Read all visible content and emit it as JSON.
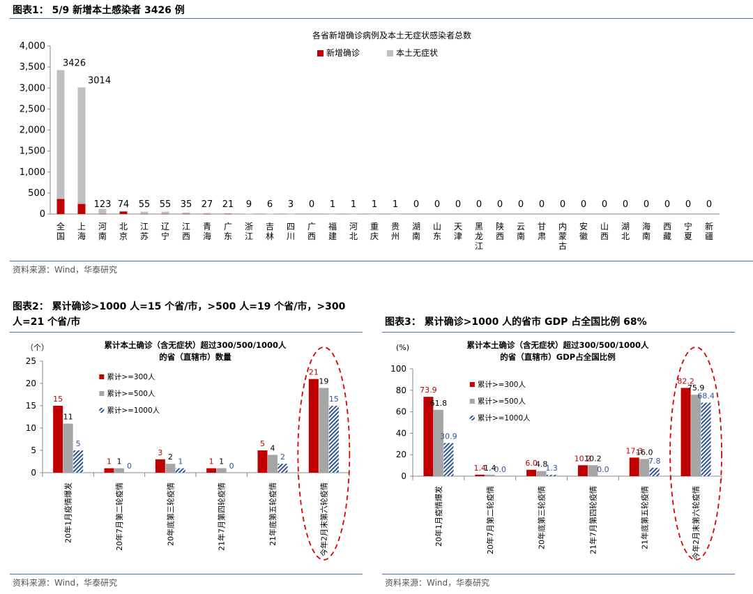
{
  "figures": {
    "fig1": {
      "title": "图表1： 5/9 新增本土感染者 3426 例",
      "source": "资料来源：Wind，华泰研究"
    },
    "fig2": {
      "title_line1": "图表2： 累计确诊>1000 人=15 个省/市，>500 人=19 个省/市，>300",
      "title_line2": "人=21 个省/市",
      "source": "资料来源：Wind，华泰研究"
    },
    "fig3": {
      "title": "图表3： 累计确诊>1000 人的省市 GDP 占全国比例 68%",
      "source": "资料来源：Wind，华泰研究"
    }
  },
  "chart_data": [
    {
      "type": "bar",
      "stacked": true,
      "title": "各省新增确诊病例及本土无症状感染者总数",
      "categories": [
        "全国",
        "上海",
        "河南",
        "北京",
        "江苏",
        "辽宁",
        "江西",
        "青海",
        "广东",
        "浙江",
        "吉林",
        "四川",
        "广西",
        "福建",
        "河北",
        "重庆",
        "贵州",
        "湖南",
        "山东",
        "天津",
        "黑龙江",
        "陕西",
        "云南",
        "甘肃",
        "内蒙古",
        "安徽",
        "山西",
        "湖北",
        "海南",
        "西藏",
        "宁夏",
        "新疆"
      ],
      "series": [
        {
          "name": "新增确诊",
          "color": "#c00000",
          "values": [
            360,
            240,
            5,
            60,
            5,
            5,
            5,
            3,
            5,
            0,
            0,
            0,
            0,
            0,
            0,
            0,
            0,
            0,
            0,
            0,
            0,
            0,
            0,
            0,
            0,
            0,
            0,
            0,
            0,
            0,
            0,
            0
          ]
        },
        {
          "name": "本土无症状",
          "color": "#bfbfbf",
          "values": [
            3066,
            2774,
            118,
            14,
            50,
            50,
            30,
            24,
            16,
            9,
            6,
            3,
            0,
            1,
            1,
            1,
            1,
            0,
            0,
            0,
            0,
            0,
            0,
            0,
            0,
            0,
            0,
            0,
            0,
            0,
            0,
            0
          ]
        }
      ],
      "totals": [
        3426,
        3014,
        123,
        74,
        55,
        55,
        35,
        27,
        21,
        9,
        6,
        3,
        0,
        1,
        1,
        1,
        1,
        0,
        0,
        0,
        0,
        0,
        0,
        0,
        0,
        0,
        0,
        0,
        0,
        0,
        0,
        0
      ],
      "total_labels": [
        "3426",
        "3014",
        "123",
        "74",
        "55",
        "55",
        "35",
        "27",
        "21",
        "9",
        "6",
        "3",
        "0",
        "1",
        "1",
        "1",
        "1",
        "0",
        "0",
        "0",
        "0",
        "0",
        "0",
        "0",
        "0",
        "0",
        "0",
        "0",
        "0",
        "0",
        "0",
        "0"
      ],
      "ylim": [
        0,
        4000
      ],
      "yticks": [
        0,
        500,
        1000,
        1500,
        2000,
        2500,
        3000,
        3500,
        4000
      ],
      "ytick_labels": [
        "0",
        "500",
        "1,000",
        "1,500",
        "2,000",
        "2,500",
        "3,000",
        "3,500",
        "4,000"
      ],
      "legend_position": "top-center"
    },
    {
      "type": "bar",
      "title_line1": "累计本土确诊（含无症状）超过300/500/1000人",
      "title_line2": "的省（直辖市）数量",
      "yunit": "（个）",
      "categories": [
        "20年1月疫情爆发",
        "20年7月第二轮疫情",
        "20年底第三轮疫情",
        "21年7月第四轮疫情",
        "21年底第五轮疫情",
        "今年2月末第六轮疫情"
      ],
      "series": [
        {
          "name": "累计>=300人",
          "color": "#c00000",
          "label_color": "#c00000",
          "values": [
            15,
            1,
            3,
            1,
            5,
            21
          ],
          "labels": [
            "15",
            "1",
            "3",
            "1",
            "5",
            "21"
          ]
        },
        {
          "name": "累计>=500人",
          "color": "#a6a6a6",
          "label_color": "#000000",
          "values": [
            11,
            1,
            2,
            1,
            4,
            19
          ],
          "labels": [
            "11",
            "1",
            "2",
            "1",
            "4",
            "19"
          ]
        },
        {
          "name": "累计>=1000人",
          "color": "#2e5597",
          "label_color": "#2e5597",
          "hatched": true,
          "values": [
            5,
            0,
            1,
            0,
            2,
            15
          ],
          "labels": [
            "5",
            "0",
            "1",
            "0",
            "2",
            "15"
          ]
        }
      ],
      "ylim": [
        0,
        25
      ],
      "yticks": [
        0,
        5,
        10,
        15,
        20,
        25
      ],
      "ytick_labels": [
        "0",
        "5",
        "10",
        "15",
        "20",
        "25"
      ],
      "highlight": "今年2月末第六轮疫情"
    },
    {
      "type": "bar",
      "title_line1": "累计本土确诊（含无症状）超过300/500/1000人",
      "title_line2": "的省（直辖市）GDP占全国比例",
      "yunit": "(%)",
      "categories": [
        "20年1月疫情爆发",
        "20年7月第二轮疫情",
        "20年底第三轮疫情",
        "21年7月第四轮疫情",
        "21年底第五轮疫情",
        "今年2月末第六轮疫情"
      ],
      "series": [
        {
          "name": "累计>=300人",
          "color": "#c00000",
          "label_color": "#c00000",
          "values": [
            73.9,
            1.4,
            6.0,
            10.2,
            17.3,
            82.2
          ],
          "labels": [
            "73.9",
            "1.4",
            "6.0",
            "10.2",
            "17.3",
            "82.2"
          ]
        },
        {
          "name": "累计>=500人",
          "color": "#a6a6a6",
          "label_color": "#000000",
          "values": [
            61.8,
            1.4,
            4.8,
            10.2,
            16.0,
            75.9
          ],
          "labels": [
            "61.8",
            "1.4",
            "4.8",
            "10.2",
            "16.0",
            "75.9"
          ]
        },
        {
          "name": "累计>=1000人",
          "color": "#2e5597",
          "label_color": "#2e5597",
          "hatched": true,
          "values": [
            30.9,
            0.0,
            1.3,
            0.0,
            7.8,
            68.4
          ],
          "labels": [
            "30.9",
            "0.0",
            "1.3",
            "0.0",
            "7.8",
            "68.4"
          ]
        }
      ],
      "ylim": [
        0,
        100
      ],
      "yticks": [
        0,
        20,
        40,
        60,
        80,
        100
      ],
      "ytick_labels": [
        "0",
        "20",
        "40",
        "60",
        "80",
        "100"
      ],
      "highlight": "今年2月末第六轮疫情"
    }
  ]
}
